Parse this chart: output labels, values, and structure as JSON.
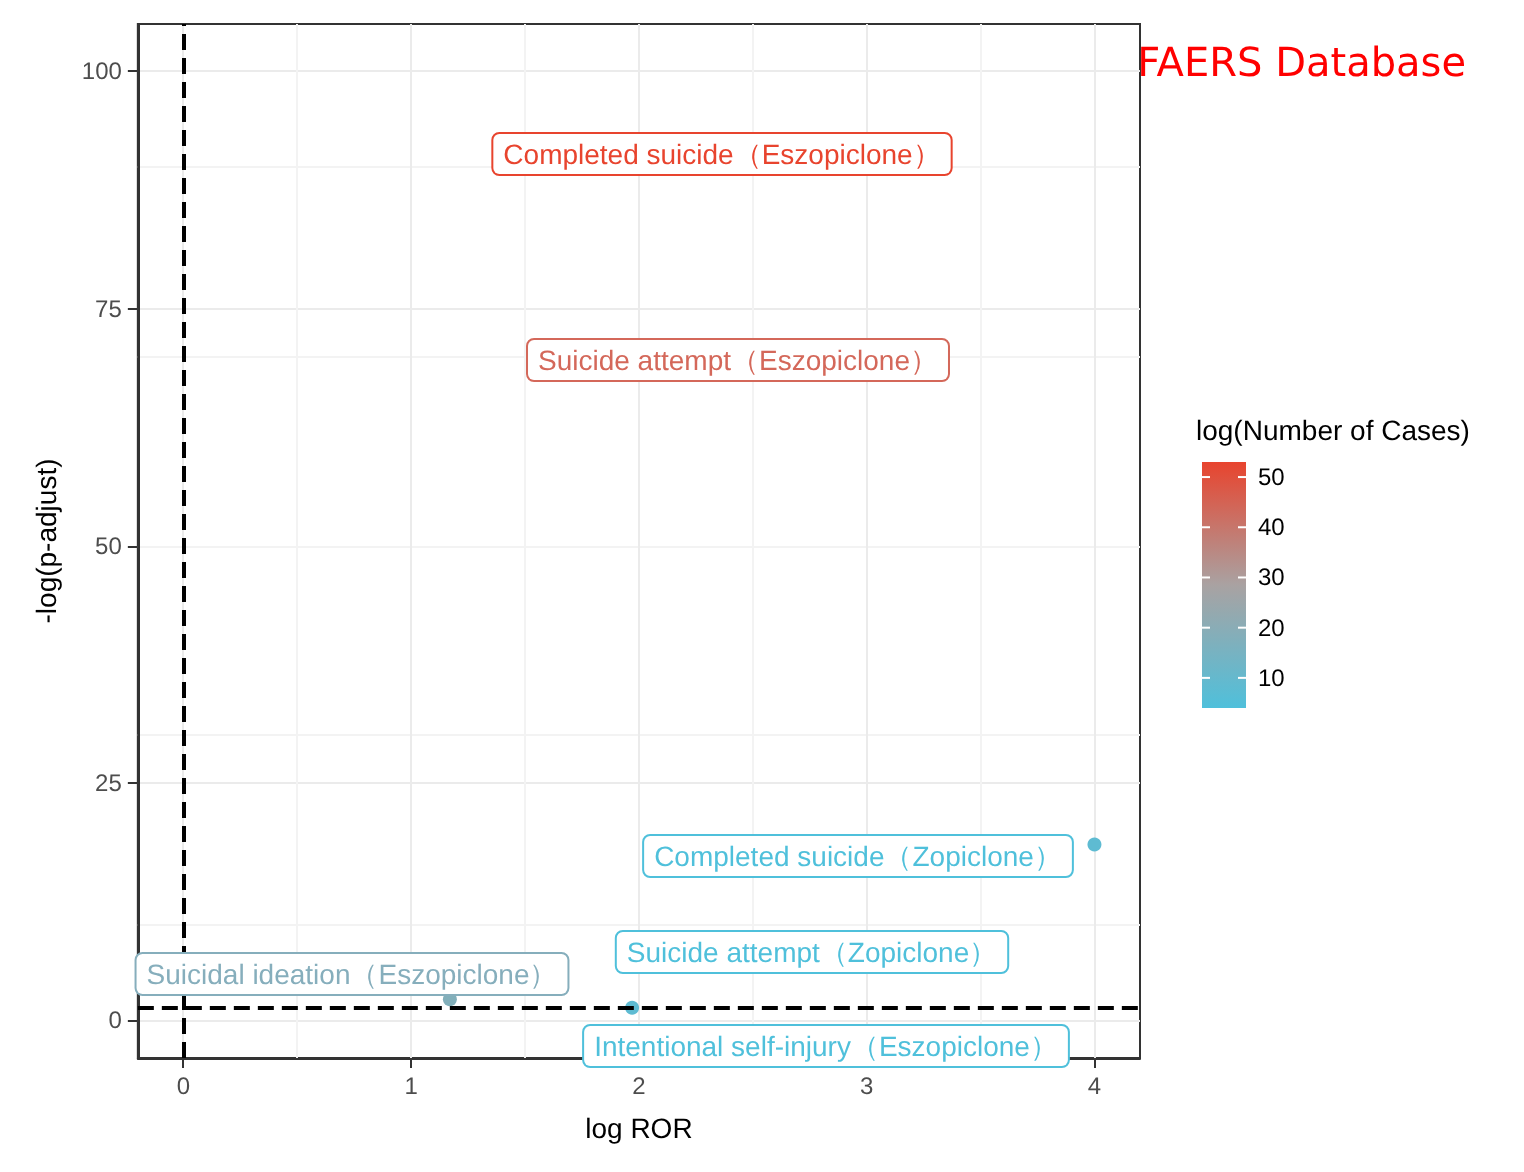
{
  "chart_data": {
    "type": "scatter",
    "title": "FAERS Database",
    "xlabel": "log ROR",
    "ylabel": "-log(p-adjust)",
    "clabel": "log(Number of Cases)",
    "series": [
      {
        "x": [
          4.0,
          1.17,
          1.97
        ],
        "values": [
          18.5,
          2.2,
          1.3
        ],
        "cvalues": [
          8,
          18,
          8
        ]
      }
    ],
    "xlim": [
      -0.2,
      4.2
    ],
    "xticks": [
      0,
      1,
      2,
      3,
      4
    ],
    "ylim": [
      -4,
      105
    ],
    "yticks": [
      0,
      25,
      50,
      75,
      100
    ],
    "clim": [
      4,
      53
    ],
    "cticks": [
      10,
      20,
      30,
      40,
      50
    ],
    "grid": true,
    "marker": "circle",
    "ref_lines": [
      {
        "axis": "x",
        "value": 0,
        "line_style": "dashed",
        "color": "#000000"
      },
      {
        "axis": "y",
        "value": 1.3,
        "line_style": "dashed",
        "color": "#000000"
      }
    ],
    "annotations": [
      "Completed suicide（Eszopiclone）",
      "Suicide attempt（Eszopiclone）",
      "Completed suicide（Zopiclone）",
      "Suicide attempt（Zopiclone）",
      "Suicidal ideation（Eszopiclone）",
      "Intentional self-injury（Eszopiclone）"
    ]
  }
}
